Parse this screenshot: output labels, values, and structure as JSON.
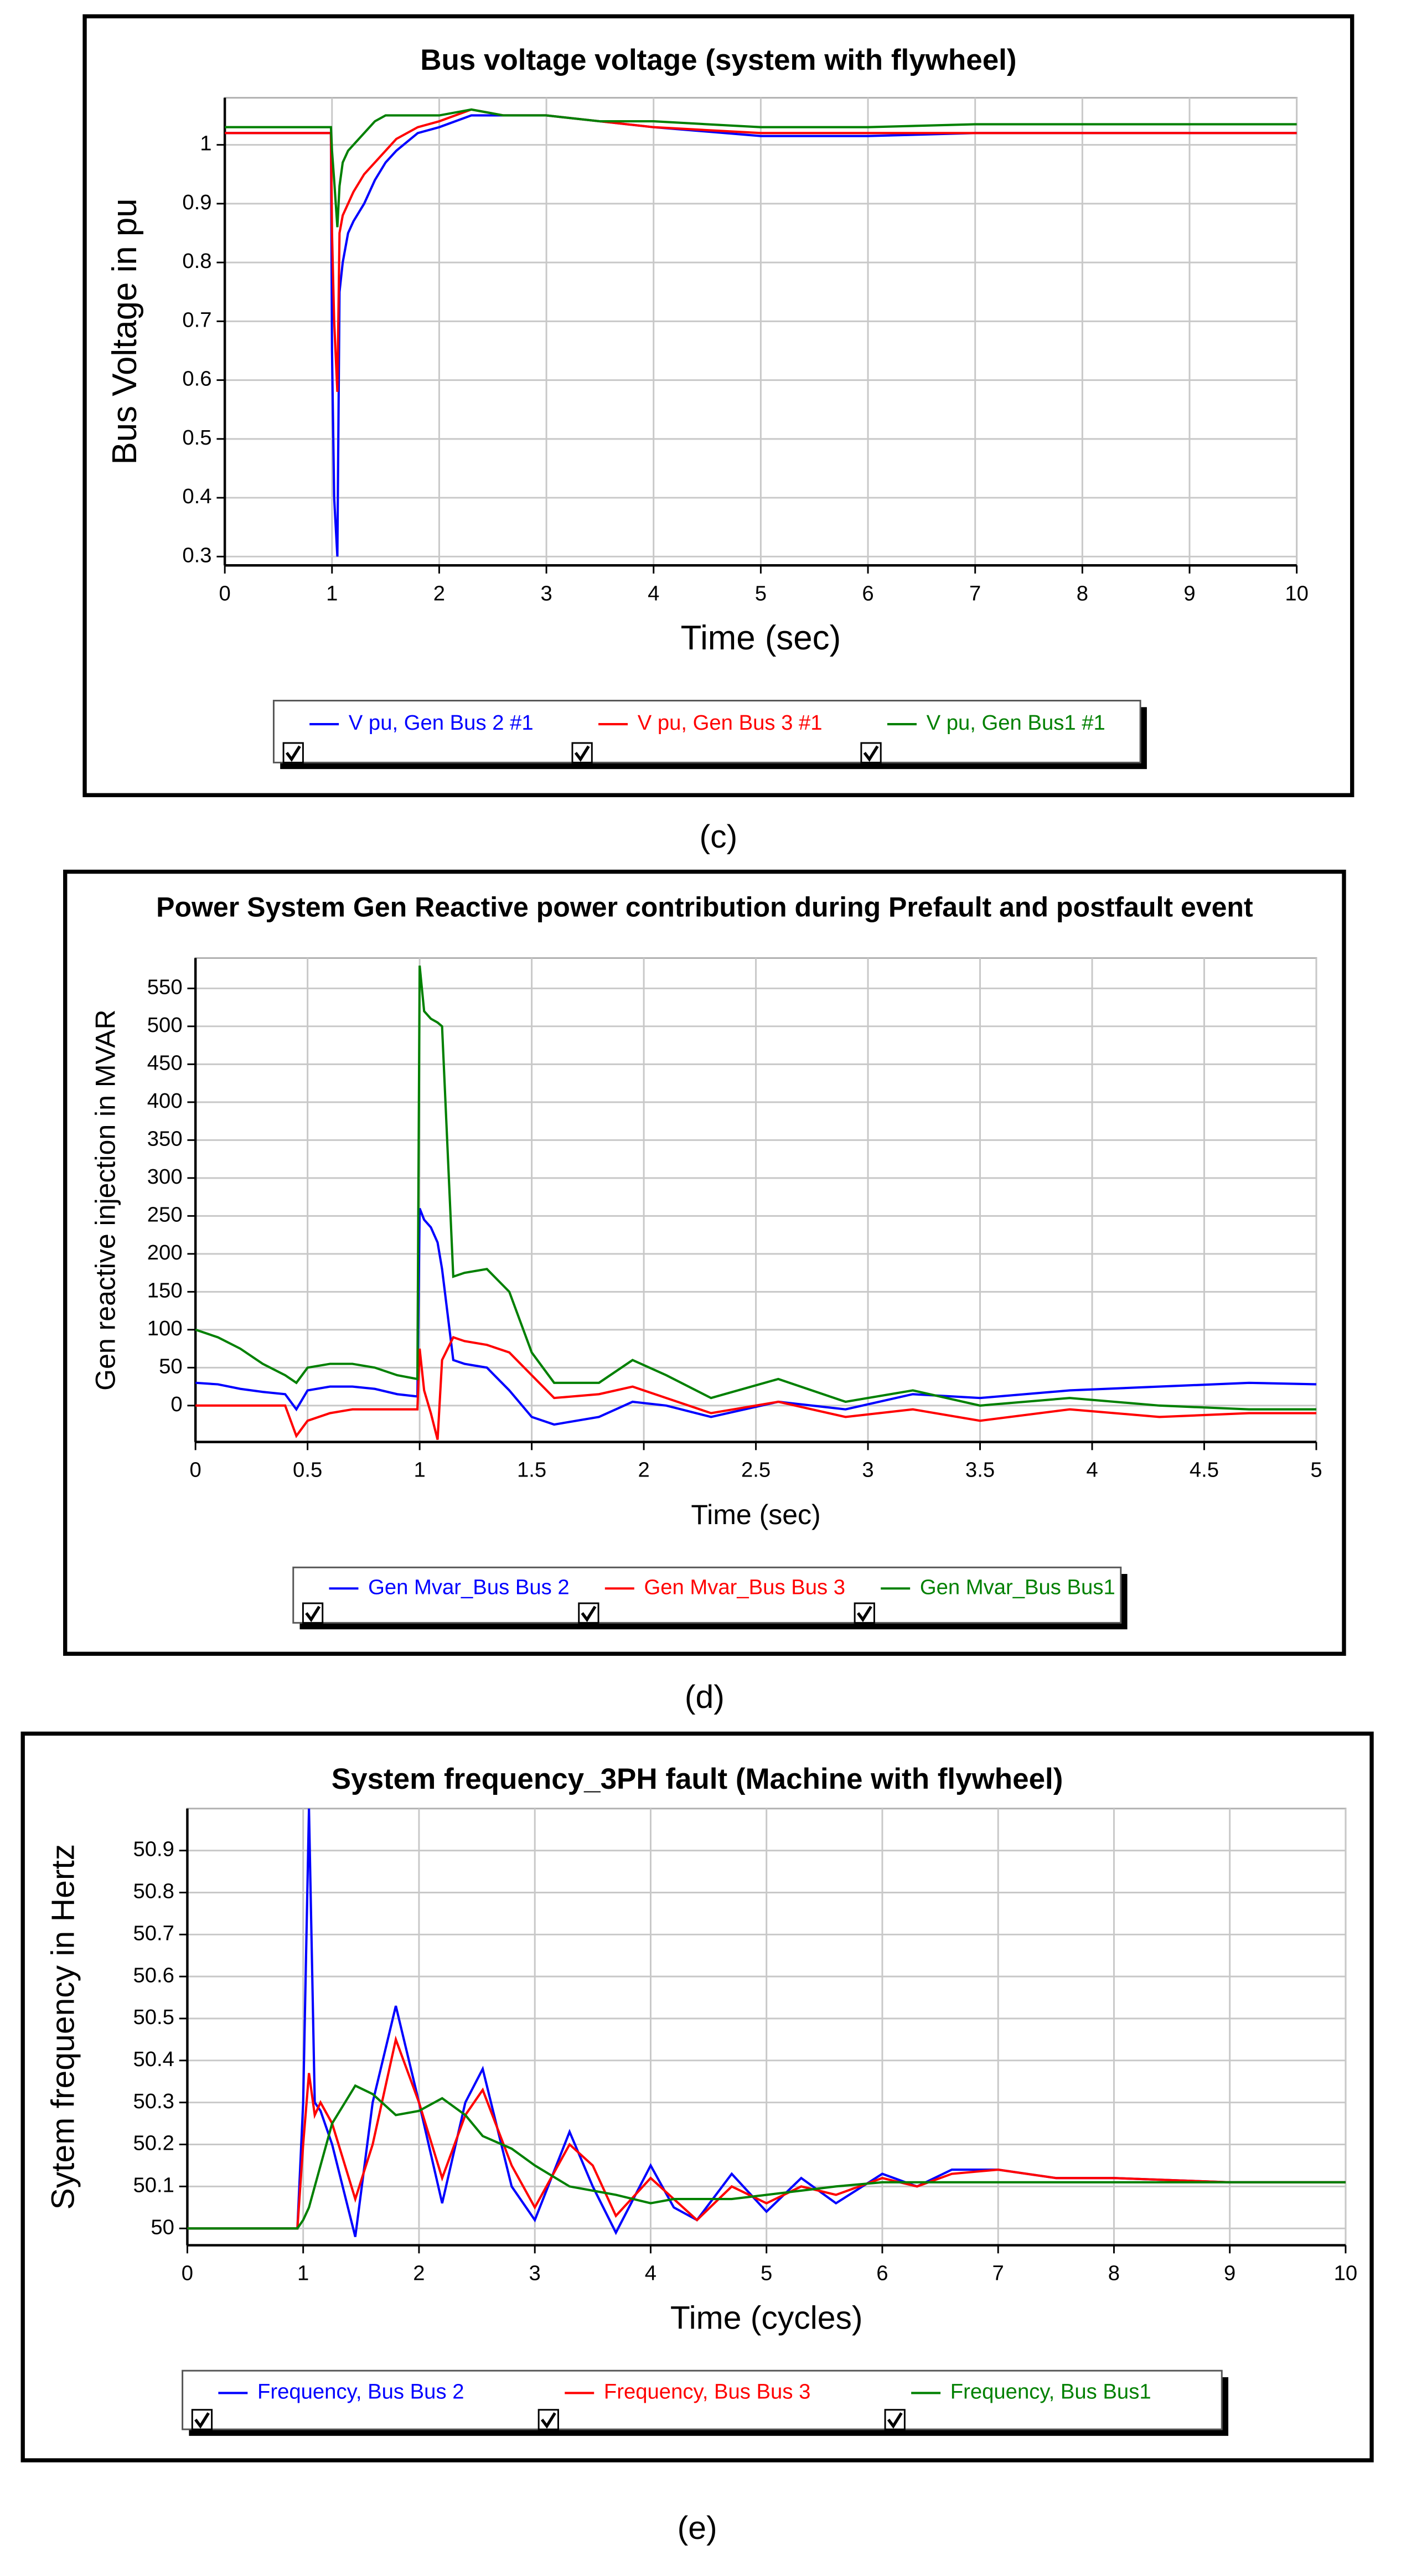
{
  "chart_data": [
    {
      "type": "line",
      "title": "Bus voltage voltage (system with flywheel)",
      "x_label": "Time (sec)",
      "y_label": "Bus Voltage in pu",
      "panel_label": "(c)",
      "grid": true,
      "x": [
        0,
        0.99,
        1.0,
        1.02,
        1.05,
        1.07,
        1.1,
        1.15,
        1.2,
        1.3,
        1.4,
        1.5,
        1.6,
        1.8,
        2.0,
        2.3,
        2.6,
        3,
        3.5,
        4,
        5,
        6,
        7,
        8,
        10
      ],
      "xlim": [
        0,
        10
      ],
      "xticks": [
        0,
        1,
        2,
        3,
        4,
        5,
        6,
        7,
        8,
        9,
        10
      ],
      "ylim": [
        0.285,
        1.08
      ],
      "yticks": [
        0.3,
        0.4,
        0.5,
        0.6,
        0.7,
        0.8,
        0.9,
        1
      ],
      "series": [
        {
          "name": "V pu, Gen Bus 2 #1",
          "color": "#0000ff",
          "values": [
            1.02,
            1.02,
            0.65,
            0.4,
            0.3,
            0.75,
            0.8,
            0.85,
            0.87,
            0.9,
            0.94,
            0.97,
            0.99,
            1.02,
            1.03,
            1.05,
            1.05,
            1.05,
            1.04,
            1.03,
            1.015,
            1.015,
            1.02,
            1.02,
            1.02
          ]
        },
        {
          "name": "V pu, Gen Bus 3 #1",
          "color": "#ff0000",
          "values": [
            1.02,
            1.02,
            0.85,
            0.7,
            0.58,
            0.85,
            0.88,
            0.9,
            0.92,
            0.95,
            0.97,
            0.99,
            1.01,
            1.03,
            1.04,
            1.06,
            1.05,
            1.05,
            1.04,
            1.03,
            1.02,
            1.02,
            1.02,
            1.02,
            1.02
          ]
        },
        {
          "name": "V pu, Gen Bus1 #1",
          "color": "#008000",
          "values": [
            1.03,
            1.03,
            0.99,
            0.94,
            0.86,
            0.93,
            0.97,
            0.99,
            1.0,
            1.02,
            1.04,
            1.05,
            1.05,
            1.05,
            1.05,
            1.06,
            1.05,
            1.05,
            1.04,
            1.04,
            1.03,
            1.03,
            1.035,
            1.035,
            1.035
          ]
        }
      ]
    },
    {
      "type": "line",
      "title": "Power System Gen  Reactive power contribution during Prefault and postfault event",
      "x_label": "Time (sec)",
      "y_label": "Gen reactive injection in MVAR",
      "panel_label": "(d)",
      "grid": true,
      "x": [
        0,
        0.1,
        0.2,
        0.3,
        0.4,
        0.45,
        0.5,
        0.6,
        0.7,
        0.8,
        0.9,
        0.99,
        1.0,
        1.02,
        1.05,
        1.08,
        1.1,
        1.15,
        1.2,
        1.3,
        1.4,
        1.5,
        1.6,
        1.8,
        1.95,
        2.1,
        2.3,
        2.6,
        2.9,
        3.2,
        3.5,
        3.9,
        4.3,
        4.7,
        5
      ],
      "xlim": [
        0,
        5
      ],
      "xticks": [
        0,
        0.5,
        1,
        1.5,
        2,
        2.5,
        3,
        3.5,
        4,
        4.5,
        5
      ],
      "ylim": [
        -48,
        590
      ],
      "yticks": [
        0,
        50,
        100,
        150,
        200,
        250,
        300,
        350,
        400,
        450,
        500,
        550
      ],
      "series": [
        {
          "name": "Gen Mvar_Bus Bus 2",
          "color": "#0000ff",
          "values": [
            30,
            28,
            22,
            18,
            15,
            -5,
            20,
            25,
            25,
            22,
            15,
            12,
            260,
            245,
            235,
            215,
            180,
            60,
            55,
            50,
            20,
            -15,
            -25,
            -15,
            5,
            0,
            -15,
            5,
            -5,
            15,
            10,
            20,
            25,
            30,
            28
          ]
        },
        {
          "name": "Gen Mvar_Bus Bus 3",
          "color": "#ff0000",
          "values": [
            0,
            0,
            0,
            0,
            0,
            -40,
            -20,
            -10,
            -5,
            -5,
            -5,
            -5,
            75,
            20,
            -10,
            -45,
            60,
            90,
            85,
            80,
            70,
            40,
            10,
            15,
            25,
            10,
            -10,
            5,
            -15,
            -5,
            -20,
            -5,
            -15,
            -10,
            -10
          ]
        },
        {
          "name": "Gen Mvar_Bus Bus1",
          "color": "#008000",
          "values": [
            100,
            90,
            75,
            55,
            40,
            30,
            50,
            55,
            55,
            50,
            40,
            35,
            580,
            520,
            510,
            505,
            500,
            170,
            175,
            180,
            150,
            70,
            30,
            30,
            60,
            40,
            10,
            35,
            5,
            20,
            0,
            10,
            0,
            -5,
            -5
          ]
        }
      ]
    },
    {
      "type": "line",
      "title": "System frequency_3PH fault (Machine with flywheel)",
      "x_label": "Time (cycles)",
      "y_label": "Sytem frequency in Hertz",
      "panel_label": "(e)",
      "grid": true,
      "x": [
        0,
        0.95,
        1.0,
        1.05,
        1.1,
        1.15,
        1.25,
        1.45,
        1.6,
        1.8,
        2.0,
        2.2,
        2.4,
        2.55,
        2.8,
        3.0,
        3.3,
        3.5,
        3.7,
        4.0,
        4.2,
        4.4,
        4.7,
        5.0,
        5.3,
        5.6,
        6.0,
        6.3,
        6.6,
        7.0,
        7.5,
        8,
        9,
        10
      ],
      "xlim": [
        0,
        10
      ],
      "xticks": [
        0,
        1,
        2,
        3,
        4,
        5,
        6,
        7,
        8,
        9,
        10
      ],
      "ylim": [
        49.96,
        51.0
      ],
      "yticks": [
        50,
        50.1,
        50.2,
        50.3,
        50.4,
        50.5,
        50.6,
        50.7,
        50.8,
        50.9
      ],
      "series": [
        {
          "name": "Frequency, Bus Bus 2",
          "color": "#0000ff",
          "values": [
            50,
            50,
            50.3,
            51.0,
            50.3,
            50.28,
            50.2,
            49.98,
            50.3,
            50.53,
            50.3,
            50.06,
            50.3,
            50.38,
            50.1,
            50.02,
            50.23,
            50.1,
            49.99,
            50.15,
            50.05,
            50.02,
            50.13,
            50.04,
            50.12,
            50.06,
            50.13,
            50.1,
            50.14,
            50.14,
            50.12,
            50.12,
            50.11,
            50.11
          ]
        },
        {
          "name": "Frequency, Bus Bus 3",
          "color": "#ff0000",
          "values": [
            50,
            50,
            50.2,
            50.37,
            50.27,
            50.3,
            50.25,
            50.07,
            50.2,
            50.45,
            50.3,
            50.12,
            50.27,
            50.33,
            50.15,
            50.05,
            50.2,
            50.15,
            50.03,
            50.12,
            50.07,
            50.02,
            50.1,
            50.06,
            50.1,
            50.08,
            50.12,
            50.1,
            50.13,
            50.14,
            50.12,
            50.12,
            50.11,
            50.11
          ]
        },
        {
          "name": "Frequency, Bus Bus1",
          "color": "#008000",
          "values": [
            50,
            50,
            50.02,
            50.05,
            50.1,
            50.15,
            50.25,
            50.34,
            50.32,
            50.27,
            50.28,
            50.31,
            50.27,
            50.22,
            50.19,
            50.15,
            50.1,
            50.09,
            50.08,
            50.06,
            50.07,
            50.07,
            50.07,
            50.08,
            50.09,
            50.1,
            50.11,
            50.11,
            50.11,
            50.11,
            50.11,
            50.11,
            50.11,
            50.11
          ]
        }
      ]
    }
  ]
}
